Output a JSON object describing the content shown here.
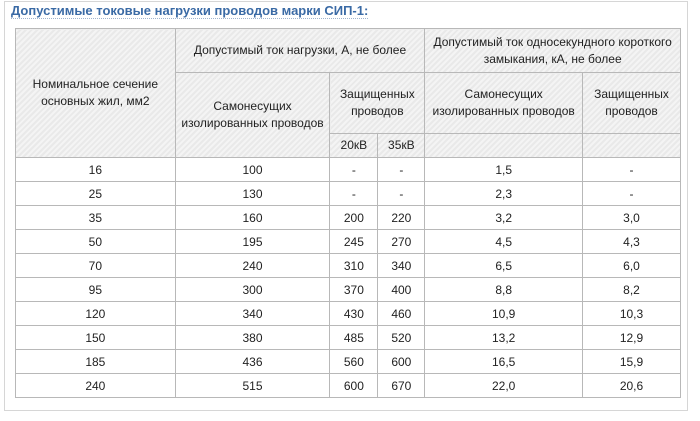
{
  "title": "Допустимые токовые нагрузки проводов марки СИП-1:",
  "table": {
    "header": {
      "section": "Номинальное сечение основных жил, мм2",
      "load_group": "Допустимый ток нагрузки, А, не более",
      "short_group": "Допустимый ток односекундного короткого замыкания, кА, не более",
      "load_self": "Самонесущих изолированных проводов",
      "load_protected": "Защищенных проводов",
      "kv20": "20кВ",
      "kv35": "35кВ",
      "short_self": "Самонесущих изолированных проводов",
      "short_protected": "Защищенных проводов"
    },
    "rows": [
      [
        "16",
        "100",
        "-",
        "-",
        "1,5",
        "-"
      ],
      [
        "25",
        "130",
        "-",
        "-",
        "2,3",
        "-"
      ],
      [
        "35",
        "160",
        "200",
        "220",
        "3,2",
        "3,0"
      ],
      [
        "50",
        "195",
        "245",
        "270",
        "4,5",
        "4,3"
      ],
      [
        "70",
        "240",
        "310",
        "340",
        "6,5",
        "6,0"
      ],
      [
        "95",
        "300",
        "370",
        "400",
        "8,8",
        "8,2"
      ],
      [
        "120",
        "340",
        "430",
        "460",
        "10,9",
        "10,3"
      ],
      [
        "150",
        "380",
        "485",
        "520",
        "13,2",
        "12,9"
      ],
      [
        "185",
        "436",
        "560",
        "600",
        "16,5",
        "15,9"
      ],
      [
        "240",
        "515",
        "600",
        "670",
        "22,0",
        "20,6"
      ]
    ]
  }
}
